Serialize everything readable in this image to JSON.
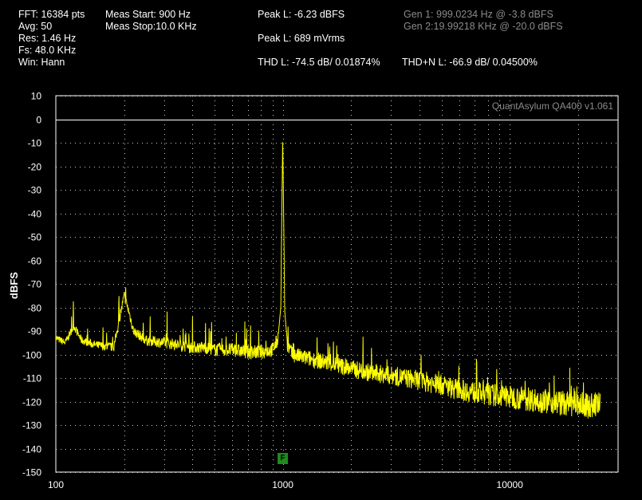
{
  "info_left": {
    "fft": "FFT: 16384 pts",
    "avg": "Avg: 50",
    "res": "Res: 1.46 Hz",
    "fs": "Fs: 48.0 KHz",
    "win": "Win: Hann"
  },
  "meas": {
    "start": "Meas Start: 900 Hz",
    "stop": "Meas Stop:10.0 KHz"
  },
  "peaks": {
    "peak_dbfs": "Peak L: -6.23 dBFS",
    "peak_mvrms": "Peak L: 689 mVrms",
    "thd": "THD L: -74.5 dB/ 0.01874%",
    "thdn": "THD+N L: -66.9 dB/ 0.04500%"
  },
  "gen": {
    "gen1": "Gen 1: 999.0234 Hz @ -3.8  dBFS",
    "gen2": "Gen 2:19.99218 KHz @ -20.0  dBFS"
  },
  "watermark": "QuantAsylum QA400 v1.061",
  "marker_label": "F",
  "colors": {
    "trace": "#ffff00",
    "grid": "#ffffff",
    "background": "#000000",
    "marker": "#1f8a1f"
  },
  "chart_data": {
    "type": "line",
    "title": "",
    "xlabel": "",
    "ylabel": "dBFS",
    "xscale": "log",
    "xlim": [
      100,
      30000
    ],
    "ylim": [
      -150,
      10
    ],
    "x_ticks": [
      "100",
      "1000",
      "10000"
    ],
    "y_ticks": [
      "10",
      "0",
      "-10",
      "-20",
      "-30",
      "-40",
      "-50",
      "-60",
      "-70",
      "-80",
      "-90",
      "-100",
      "-110",
      "-120",
      "-130",
      "-140",
      "-150"
    ],
    "grid": true,
    "series": [
      {
        "x": [
          100,
          110,
          120,
          130,
          150,
          180,
          200,
          210,
          220,
          250,
          300,
          350,
          400,
          450,
          500,
          600,
          700,
          800,
          900,
          950,
          980,
          999,
          1020,
          1050,
          1100,
          1200,
          1500,
          2000,
          2500,
          3000,
          4000,
          5000,
          6000,
          8000,
          10000,
          12000,
          15000,
          18000,
          20000,
          22000,
          25000
        ],
        "y": [
          -93,
          -95,
          -88,
          -94,
          -96,
          -97,
          -75,
          -82,
          -90,
          -94,
          -95,
          -96,
          -97,
          -97,
          -98,
          -98,
          -99,
          -99,
          -98,
          -94,
          -80,
          -6,
          -82,
          -96,
          -100,
          -101,
          -103,
          -106,
          -108,
          -109,
          -111,
          -113,
          -115,
          -117,
          -118,
          -119,
          -120,
          -121,
          -121,
          -122,
          -121
        ]
      }
    ]
  }
}
